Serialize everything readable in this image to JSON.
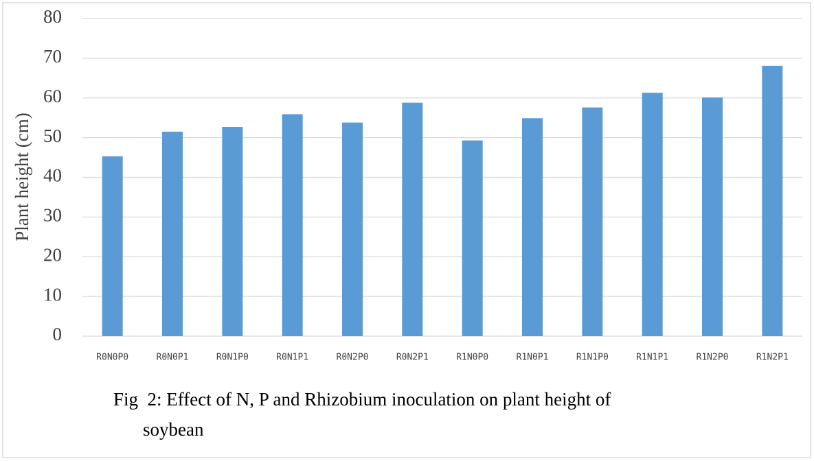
{
  "chart_data": {
    "type": "bar",
    "title": "Fig  2: Effect of N, P and Rhizobium inoculation on plant height of soybean",
    "y_label": "Plant height (cm)",
    "categories": [
      "R0N0P0",
      "R0N0P1",
      "R0N1P0",
      "R0N1P1",
      "R0N2P0",
      "R0N2P1",
      "R1N0P0",
      "R1N0P1",
      "R1N1P0",
      "R1N1P1",
      "R1N2P0",
      "R1N2P1"
    ],
    "values": [
      45.3,
      51.5,
      52.7,
      55.9,
      53.8,
      58.8,
      49.3,
      54.9,
      57.6,
      61.3,
      60.1,
      68.1
    ],
    "color": "#5b9bd5",
    "ylim": [
      0,
      80
    ],
    "yticks": [
      0,
      10,
      20,
      30,
      40,
      50,
      60,
      70,
      80
    ],
    "grid": true
  }
}
